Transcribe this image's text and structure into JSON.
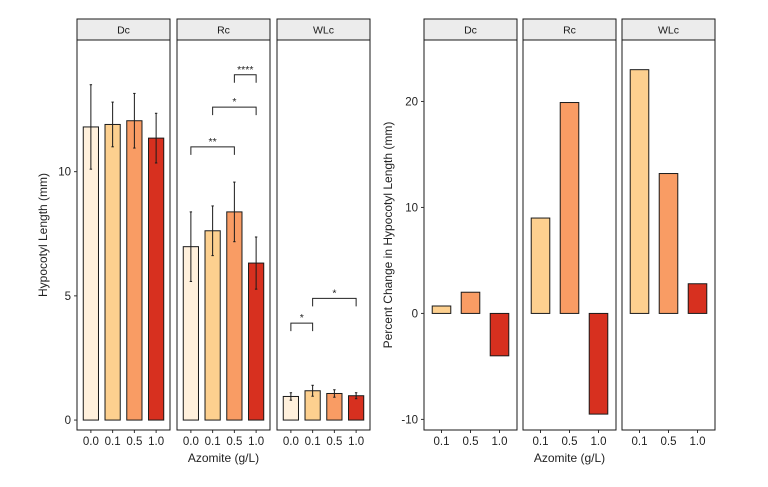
{
  "colors": {
    "0.0": "#fff0dc",
    "0.1": "#fdd08f",
    "0.5": "#f99c64",
    "1.0": "#d7301f",
    "strip_fill": "#ececec",
    "outline": "#1a1a1a"
  },
  "chart_data": [
    {
      "type": "bar",
      "xlabel": "Azomite (g/L)",
      "ylabel": "Hypocotyl Length (mm)",
      "ylim": [
        -0.4,
        15.3
      ],
      "yticks": [
        0,
        5,
        10
      ],
      "grid": false,
      "legend": "none",
      "error_bars": true,
      "panels": [
        {
          "strip": "Dc",
          "categories": [
            "0.0",
            "0.1",
            "0.5",
            "1.0"
          ],
          "values": [
            11.8,
            11.9,
            12.05,
            11.35
          ],
          "errors": [
            1.7,
            0.9,
            1.1,
            1.0
          ],
          "significance": []
        },
        {
          "strip": "Rc",
          "categories": [
            "0.0",
            "0.1",
            "0.5",
            "1.0"
          ],
          "values": [
            6.98,
            7.62,
            8.38,
            6.32
          ],
          "errors": [
            1.4,
            1.0,
            1.2,
            1.05
          ],
          "significance": [
            {
              "from": "0.0",
              "to": "0.5",
              "label": "**",
              "y": 11.0
            },
            {
              "from": "0.1",
              "to": "1.0",
              "label": "*",
              "y": 12.6
            },
            {
              "from": "0.5",
              "to": "1.0",
              "label": "****",
              "y": 13.9
            }
          ]
        },
        {
          "strip": "WLc",
          "categories": [
            "0.0",
            "0.1",
            "0.5",
            "1.0"
          ],
          "values": [
            0.95,
            1.18,
            1.07,
            0.98
          ],
          "errors": [
            0.15,
            0.22,
            0.15,
            0.12
          ],
          "significance": [
            {
              "from": "0.0",
              "to": "0.1",
              "label": "*",
              "y": 3.9
            },
            {
              "from": "0.1",
              "to": "1.0",
              "label": "*",
              "y": 4.9
            }
          ]
        }
      ]
    },
    {
      "type": "bar",
      "xlabel": "Azomite (g/L)",
      "ylabel": "Percent Change in Hypocotyl Length (mm)",
      "ylim": [
        -11.0,
        25.8
      ],
      "yticks": [
        -10,
        0,
        10,
        20
      ],
      "grid": false,
      "legend": "none",
      "panels": [
        {
          "strip": "Dc",
          "categories": [
            "0.1",
            "0.5",
            "1.0"
          ],
          "values": [
            0.7,
            2.0,
            -4.0
          ]
        },
        {
          "strip": "Rc",
          "categories": [
            "0.1",
            "0.5",
            "1.0"
          ],
          "values": [
            9.0,
            19.9,
            -9.5
          ]
        },
        {
          "strip": "WLc",
          "categories": [
            "0.1",
            "0.5",
            "1.0"
          ],
          "values": [
            23.0,
            13.2,
            2.8
          ]
        }
      ]
    }
  ]
}
